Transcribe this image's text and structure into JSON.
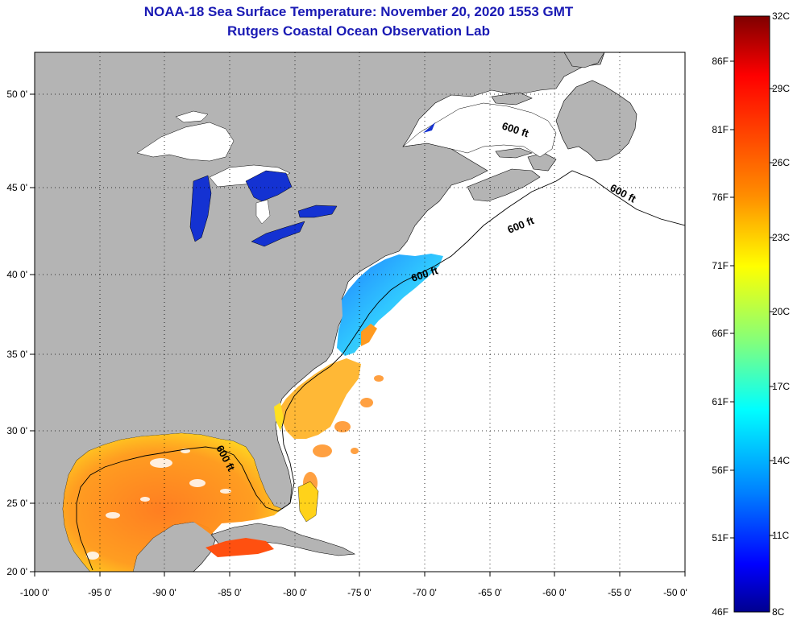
{
  "title_line1": "NOAA-18 Sea Surface Temperature:  November 20, 2020 1553 GMT",
  "title_line2": "Rutgers Coastal Ocean Observation Lab",
  "map": {
    "lon_labels": [
      "-100 0'",
      "-95 0'",
      "-90 0'",
      "-85 0'",
      "-80 0'",
      "-75 0'",
      "-70 0'",
      "-65 0'",
      "-60 0'",
      "-55 0'",
      "-50 0'"
    ],
    "lat_labels": [
      "50 0'",
      "45 0'",
      "40 0'",
      "35 0'",
      "30 0'",
      "25 0'",
      "20 0'"
    ],
    "contour_label": "600 ft",
    "colors": {
      "land": "#b4b4b4",
      "ocean_nodata": "#ffffff",
      "lakes": "#1432d2"
    }
  },
  "colorbar": {
    "celsius_labels": [
      "32C",
      "29C",
      "26C",
      "23C",
      "20C",
      "17C",
      "14C",
      "11C",
      "8C"
    ],
    "fahrenheit_labels": [
      "86F",
      "81F",
      "76F",
      "71F",
      "66F",
      "61F",
      "56F",
      "51F",
      "46F"
    ],
    "min_c": 8,
    "max_c": 32,
    "gradient_colors": [
      "#7f0000",
      "#ff0000",
      "#ff8c00",
      "#ffff00",
      "#7fff7f",
      "#00ffff",
      "#0080ff",
      "#0000ff",
      "#00008f"
    ]
  }
}
